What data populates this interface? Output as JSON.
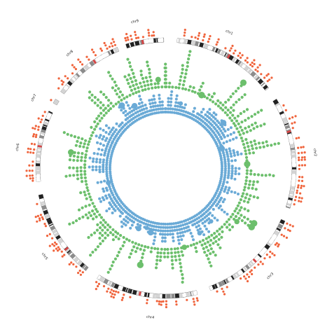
{
  "chart_data": {
    "type": "circos",
    "title": "",
    "grid": false,
    "chromosomes": [
      {
        "name": "chr1",
        "start_deg": 5,
        "end_deg": 52,
        "label_deg": 25
      },
      {
        "name": "chr2",
        "start_deg": 58,
        "end_deg": 108,
        "label_deg": 84
      },
      {
        "name": "chr3",
        "start_deg": 114,
        "end_deg": 160,
        "label_deg": 136
      },
      {
        "name": "chr4",
        "start_deg": 166,
        "end_deg": 212,
        "label_deg": 186
      },
      {
        "name": "chr5",
        "start_deg": 218,
        "end_deg": 258,
        "label_deg": 234
      },
      {
        "name": "chr6",
        "start_deg": 264,
        "end_deg": 296,
        "label_deg": 278
      },
      {
        "name": "chr7",
        "start_deg": 300,
        "end_deg": 302,
        "label_deg": 298
      },
      {
        "name": "chr8",
        "start_deg": 306,
        "end_deg": 338,
        "label_deg": 320
      },
      {
        "name": "chr9",
        "start_deg": 342,
        "end_deg": 359,
        "label_deg": 348
      }
    ],
    "colors": {
      "outer_points": "#f0643c",
      "middle_track": "#6cbf6c",
      "inner_track": "#6aaad6",
      "ideogram_dark": "#222222",
      "ideogram_mid": "#8c8c8c",
      "ideogram_light": "#d4d4d4",
      "centromere": "#d64545"
    }
  }
}
